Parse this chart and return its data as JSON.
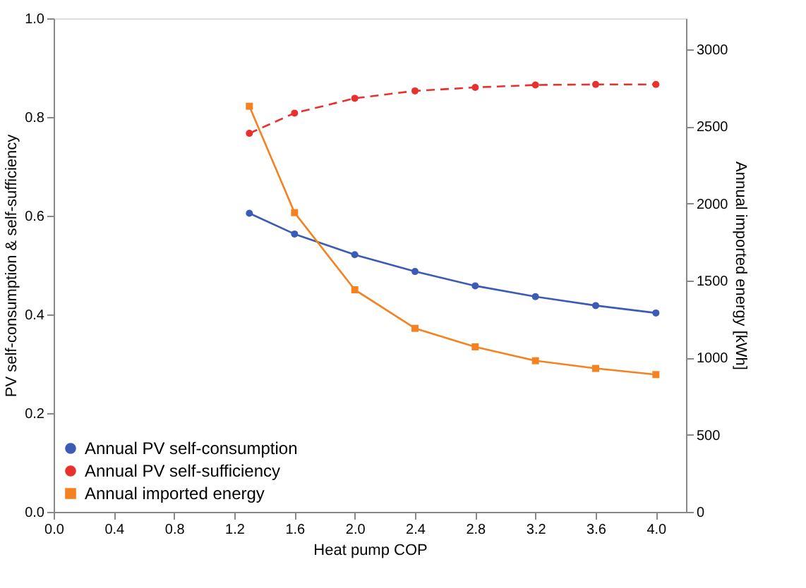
{
  "chart_data": {
    "type": "line",
    "xlabel": "Heat pump COP",
    "ylabel": "PV self-consumption & self-sufficiency",
    "y2label": "Annual imported energy [kWh]",
    "x": [
      1.3,
      1.6,
      2.0,
      2.4,
      2.8,
      3.2,
      3.6,
      4.0
    ],
    "xlim": [
      0,
      4.2
    ],
    "xticks": [
      {
        "value": 0,
        "label": "0.0"
      },
      0.4,
      0.8,
      1.2,
      1.6,
      {
        "value": 2,
        "label": "2.0"
      },
      2.4,
      2.8,
      3.2,
      3.6,
      {
        "value": 4,
        "label": "4.0"
      }
    ],
    "ylim": [
      0,
      1
    ],
    "yticks": [
      {
        "value": 0,
        "label": "0.0"
      },
      0.2,
      0.4,
      0.6,
      0.8,
      {
        "value": 1,
        "label": "1.0"
      }
    ],
    "y2lim": [
      0,
      3200
    ],
    "y2ticks": [
      0,
      500,
      1000,
      1500,
      2000,
      2500,
      3000
    ],
    "grid": false,
    "legend": "bottom left",
    "series": [
      {
        "name": "Annual PV self-consumption",
        "color": "#3b5bb5",
        "marker": "circle",
        "line_style": "solid",
        "values": [
          0.605,
          0.563,
          0.521,
          0.487,
          0.458,
          0.436,
          0.418,
          0.403
        ]
      },
      {
        "name": "Annual PV self-sufficiency",
        "color": "#e8312d",
        "marker": "circle",
        "line_style": "dashed",
        "values": [
          0.767,
          0.808,
          0.838,
          0.853,
          0.86,
          0.865,
          0.866,
          0.866
        ]
      },
      {
        "name": "Annual imported energy",
        "color": "#f58220",
        "marker": "square",
        "line_style": "solid",
        "axis": "y2",
        "values": [
          2630,
          1940,
          1440,
          1190,
          1070,
          980,
          930,
          890
        ]
      }
    ]
  }
}
